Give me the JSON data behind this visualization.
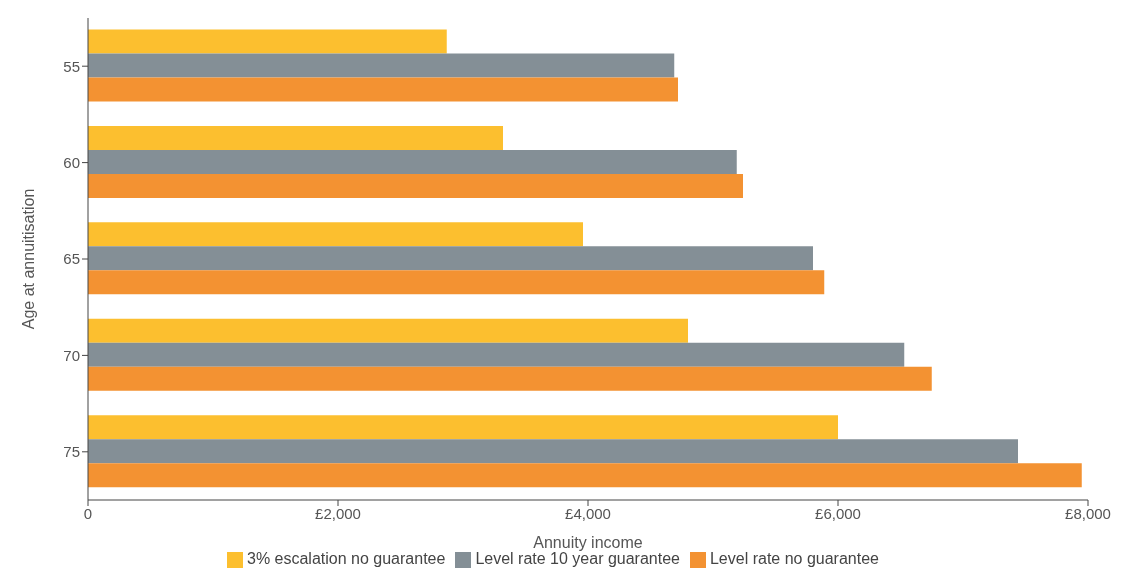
{
  "chart_data": {
    "type": "bar",
    "orientation": "horizontal",
    "xlabel": "Annuity income",
    "ylabel": "Age at annuitisation",
    "categories": [
      "55",
      "60",
      "65",
      "70",
      "75"
    ],
    "series": [
      {
        "name": "3% escalation no guarantee",
        "color": "#fcbf2f",
        "values": [
          2870,
          3320,
          3960,
          4800,
          6000
        ]
      },
      {
        "name": "Level rate 10 year guarantee",
        "color": "#848f96",
        "values": [
          4690,
          5190,
          5800,
          6530,
          7440
        ]
      },
      {
        "name": "Level rate no guarantee",
        "color": "#f39232",
        "values": [
          4720,
          5240,
          5890,
          6750,
          7950
        ]
      }
    ],
    "xlim": [
      0,
      8000
    ],
    "xticks": [
      0,
      {
        "value": 2000,
        "label": "£2,000"
      },
      {
        "value": 4000,
        "label": "£4,000"
      },
      {
        "value": 6000,
        "label": "£6,000"
      },
      {
        "value": 8000,
        "label": "£8,000"
      }
    ],
    "grid": false,
    "legend": "bottom"
  }
}
